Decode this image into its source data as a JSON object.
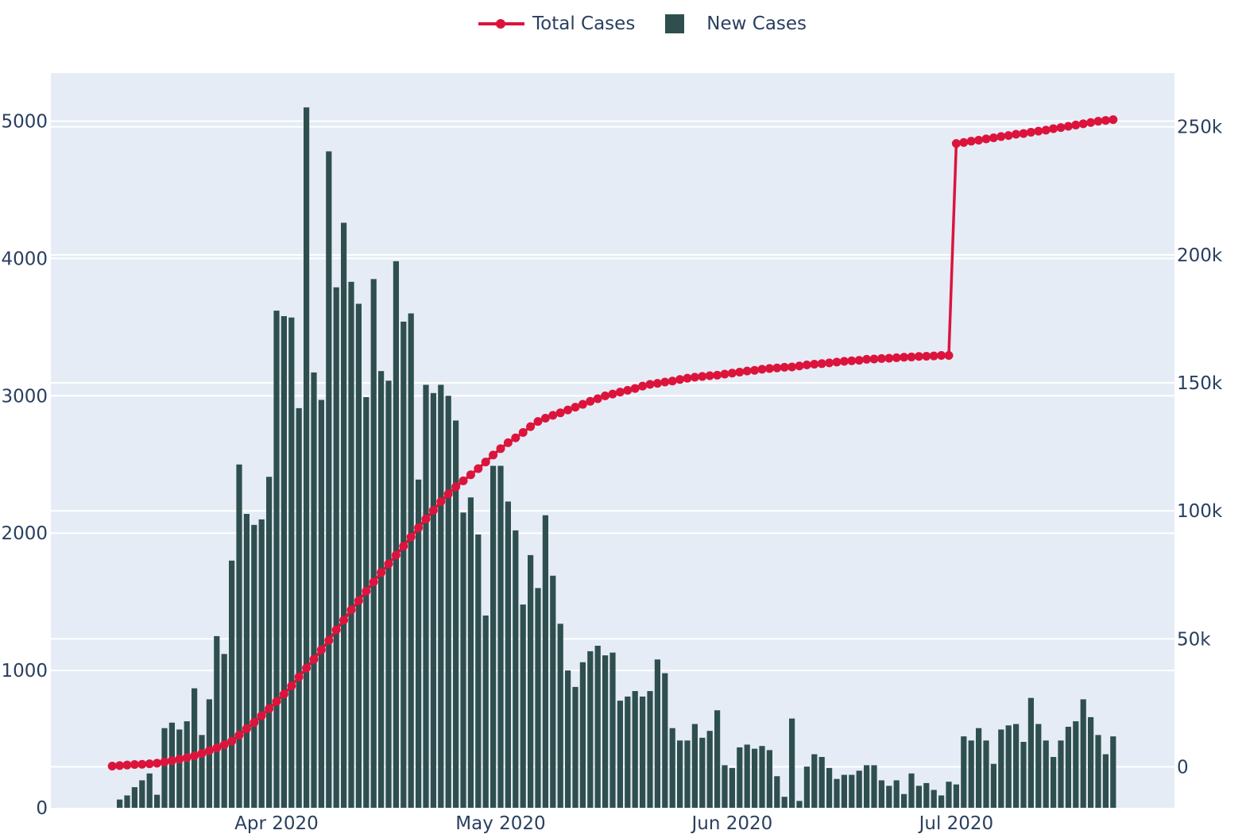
{
  "colors": {
    "total_cases": "#dc143c",
    "new_cases": "#2f4f4f",
    "plot_bg": "#e5ecf6",
    "grid": "#ffffff",
    "axis_text": "#2a3f5f"
  },
  "legend": {
    "items": [
      {
        "label": "Total Cases",
        "type": "line-marker"
      },
      {
        "label": "New Cases",
        "type": "bar"
      }
    ]
  },
  "chart_data": {
    "type": "bar+line",
    "title": "",
    "xlabel": "",
    "ylabel_left": "",
    "ylabel_right": "",
    "x_ticks": [
      "Apr 2020",
      "May 2020",
      "Jun 2020",
      "Jul 2020"
    ],
    "y_left_ticks": [
      "0",
      "1000",
      "2000",
      "3000",
      "4000",
      "5000"
    ],
    "y_right_ticks": [
      "0",
      "50k",
      "100k",
      "150k",
      "200k",
      "250k"
    ],
    "y_left_range": [
      0,
      5350
    ],
    "y_right_range": [
      -16000,
      271000
    ],
    "legend_position": "top-center",
    "grid": true,
    "series": [
      {
        "name": "New Cases",
        "type": "bar",
        "axis": "left",
        "start_date": "2020-03-11",
        "values": [
          60,
          90,
          150,
          200,
          250,
          95,
          580,
          620,
          570,
          630,
          870,
          530,
          790,
          1250,
          1120,
          1800,
          2500,
          2140,
          2060,
          2100,
          2410,
          3620,
          3580,
          3570,
          2910,
          5100,
          3170,
          2970,
          4780,
          3790,
          4260,
          3830,
          3670,
          2990,
          3850,
          3180,
          3110,
          3980,
          3540,
          3600,
          2390,
          3080,
          3020,
          3080,
          3000,
          2820,
          2150,
          2260,
          1990,
          1400,
          2490,
          2490,
          2230,
          2020,
          1480,
          1840,
          1600,
          2130,
          1690,
          1340,
          1000,
          880,
          1060,
          1140,
          1180,
          1110,
          1130,
          780,
          810,
          850,
          810,
          850,
          1080,
          980,
          580,
          490,
          490,
          610,
          510,
          560,
          710,
          310,
          290,
          440,
          460,
          430,
          450,
          420,
          230,
          80,
          650,
          50,
          300,
          390,
          370,
          290,
          210,
          240,
          240,
          270,
          310,
          310,
          200,
          160,
          200,
          100,
          250,
          160,
          180,
          130,
          90,
          190,
          170,
          520,
          490,
          580,
          490,
          320,
          570,
          600,
          610,
          480,
          800,
          610,
          490,
          370,
          490,
          590,
          630,
          790,
          660,
          530,
          390,
          520
        ]
      },
      {
        "name": "Total Cases",
        "type": "line+markers",
        "axis": "right",
        "start_date": "2020-03-10",
        "values": [
          300,
          500,
          700,
          900,
          1000,
          1200,
          1400,
          1900,
          2400,
          3000,
          3600,
          4300,
          5200,
          6300,
          7400,
          8600,
          10000,
          12400,
          14900,
          17300,
          20000,
          22700,
          25500,
          28400,
          31600,
          35100,
          38600,
          42000,
          45700,
          49400,
          53500,
          57300,
          61300,
          64900,
          68600,
          72200,
          75900,
          79300,
          82700,
          86200,
          89800,
          93400,
          96800,
          100200,
          103600,
          106600,
          109400,
          111700,
          114100,
          116500,
          119100,
          121800,
          124300,
          126600,
          128500,
          130600,
          132900,
          134900,
          136200,
          137300,
          138300,
          139400,
          140500,
          141600,
          142800,
          143800,
          144900,
          145600,
          146400,
          147100,
          147800,
          148700,
          149400,
          149800,
          150300,
          150700,
          151300,
          151800,
          152200,
          152500,
          152800,
          153000,
          153400,
          153800,
          154200,
          154600,
          154900,
          155300,
          155600,
          155800,
          156100,
          156200,
          156600,
          157000,
          157300,
          157500,
          157800,
          158100,
          158400,
          158600,
          158800,
          159200,
          159300,
          159500,
          159600,
          159800,
          160000,
          160100,
          160300,
          160400,
          160500,
          160700,
          160700,
          243500,
          243900,
          244400,
          244800,
          245300,
          245700,
          246200,
          246600,
          247100,
          247400,
          247900,
          248300,
          248700,
          249300,
          249700,
          250200,
          250700,
          251200,
          251700,
          252200,
          252500,
          252800
        ]
      }
    ]
  }
}
